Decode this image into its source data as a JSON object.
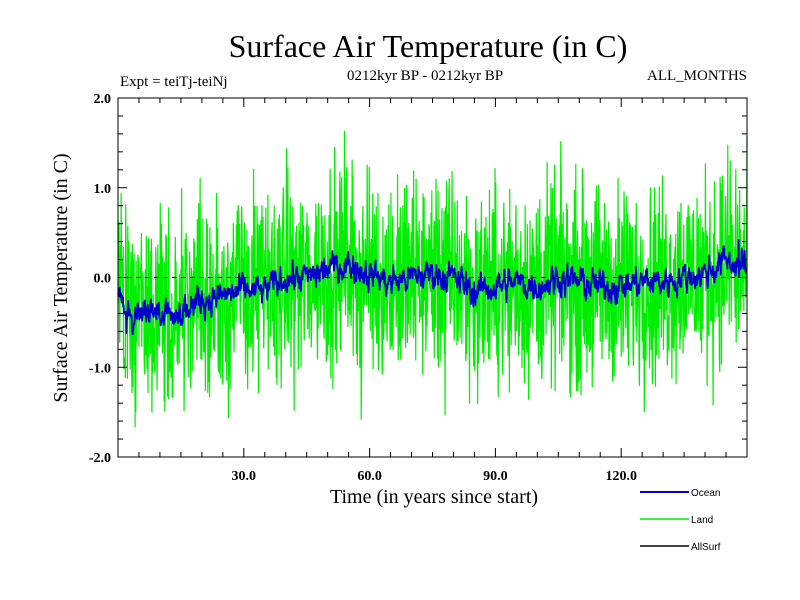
{
  "chart_data": {
    "type": "line",
    "title": "Surface Air Temperature (in C)",
    "subtitle_left": "Expt = teiTj-teiNj",
    "subtitle_center": "0212kyr BP - 0212kyr BP",
    "subtitle_right": "ALL_MONTHS",
    "xlabel": "Time (in years since start)",
    "ylabel": "Surface Air Temperature (in C)",
    "xlim": [
      0,
      150
    ],
    "ylim": [
      -2.0,
      2.0
    ],
    "xticks": [
      30,
      60,
      90,
      120
    ],
    "xtick_labels": [
      "30.0",
      "60.0",
      "90.0",
      "120.0"
    ],
    "yticks": [
      -2.0,
      -1.0,
      0.0,
      1.0,
      2.0
    ],
    "ytick_labels": [
      "-2.0",
      "-1.0",
      "0.0",
      "1.0",
      "2.0"
    ],
    "zero_line": true,
    "series": [
      {
        "name": "Land",
        "color": "#00ee00",
        "samples_per_year": 12,
        "trend_x": [
          0,
          3,
          6,
          10,
          15,
          20,
          25,
          30,
          35,
          40,
          45,
          50,
          55,
          60,
          65,
          70,
          75,
          80,
          85,
          90,
          95,
          100,
          105,
          110,
          115,
          120,
          125,
          130,
          135,
          140,
          145,
          150
        ],
        "trend_y": [
          -0.05,
          -0.45,
          -0.35,
          -0.4,
          -0.35,
          -0.25,
          -0.2,
          -0.1,
          -0.15,
          0.0,
          0.0,
          0.1,
          0.15,
          0.05,
          -0.05,
          0.0,
          0.05,
          0.0,
          -0.15,
          -0.1,
          -0.05,
          -0.1,
          0.0,
          -0.05,
          -0.1,
          -0.1,
          -0.05,
          -0.05,
          0.0,
          0.05,
          0.15,
          0.1
        ],
        "noise_amplitude": 0.55,
        "peaks": [
          {
            "x": 1.5,
            "y": -0.9
          },
          {
            "x": 12,
            "y": -1.35
          },
          {
            "x": 54,
            "y": 1.63
          },
          {
            "x": 58,
            "y": -1.58
          },
          {
            "x": 78,
            "y": -1.53
          },
          {
            "x": 146,
            "y": 1.3
          }
        ]
      },
      {
        "name": "Ocean",
        "color": "#0000cc",
        "samples_per_year": 12,
        "trend_x": [
          0,
          1,
          3,
          6,
          10,
          15,
          20,
          25,
          30,
          35,
          40,
          45,
          50,
          55,
          60,
          65,
          70,
          75,
          80,
          85,
          90,
          95,
          100,
          105,
          110,
          115,
          120,
          125,
          130,
          135,
          140,
          145,
          150
        ],
        "trend_y": [
          -0.1,
          -0.2,
          -0.5,
          -0.35,
          -0.4,
          -0.35,
          -0.25,
          -0.2,
          -0.15,
          -0.15,
          0.0,
          0.0,
          0.1,
          0.15,
          0.05,
          -0.05,
          0.0,
          0.05,
          0.0,
          -0.15,
          -0.1,
          -0.05,
          -0.1,
          0.0,
          -0.05,
          -0.1,
          -0.1,
          -0.05,
          -0.05,
          0.0,
          0.05,
          0.2,
          0.1
        ],
        "noise_amplitude": 0.12,
        "peaks": [
          {
            "x": 2,
            "y": -0.62
          },
          {
            "x": 148,
            "y": 0.42
          }
        ]
      },
      {
        "name": "AllSurf",
        "color": "#000000",
        "samples_per_year": 12,
        "trend_x": [
          0,
          150
        ],
        "trend_y": [
          0.0,
          0.0
        ],
        "noise_amplitude": 0.0,
        "peaks": []
      }
    ],
    "legend": [
      "Ocean",
      "Land",
      "AllSurf"
    ],
    "legend_position": "bottom-right"
  }
}
